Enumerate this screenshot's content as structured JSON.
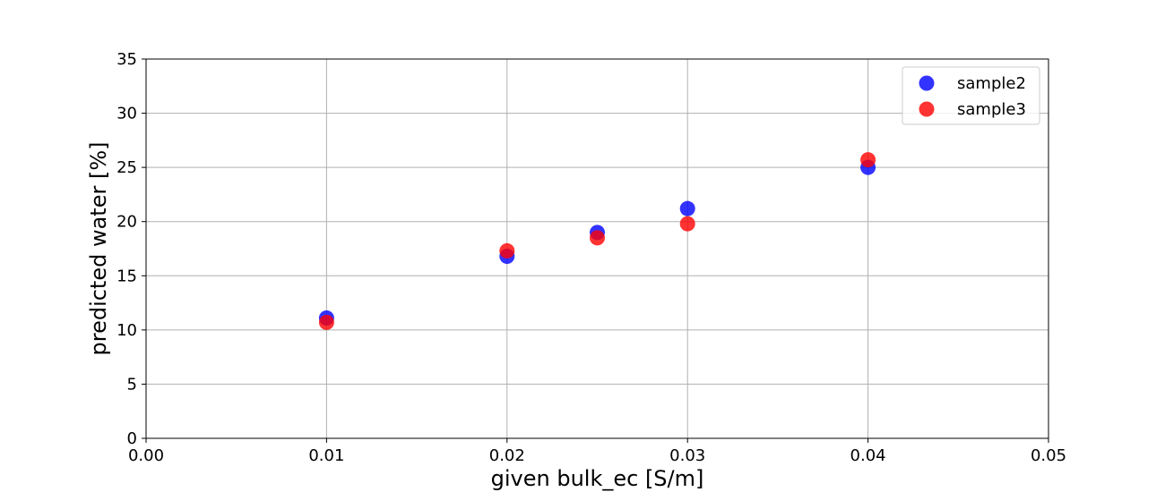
{
  "chart_data": {
    "type": "scatter",
    "title": "",
    "xlabel": "given bulk_ec [S/m]",
    "ylabel": "predicted water [%]",
    "xlim": [
      0.0,
      0.05
    ],
    "ylim": [
      0,
      35
    ],
    "x_ticks": [
      "0.00",
      "0.01",
      "0.02",
      "0.03",
      "0.04",
      "0.05"
    ],
    "y_ticks": [
      "0",
      "5",
      "10",
      "15",
      "20",
      "25",
      "30",
      "35"
    ],
    "grid": true,
    "legend_position": "top-right",
    "series": [
      {
        "name": "sample2",
        "color": "#0000ff",
        "points": [
          {
            "x": 0.01,
            "y": 11.1
          },
          {
            "x": 0.02,
            "y": 16.8
          },
          {
            "x": 0.025,
            "y": 19.0
          },
          {
            "x": 0.03,
            "y": 21.2
          },
          {
            "x": 0.04,
            "y": 25.0
          }
        ]
      },
      {
        "name": "sample3",
        "color": "#ff0000",
        "points": [
          {
            "x": 0.01,
            "y": 10.7
          },
          {
            "x": 0.02,
            "y": 17.3
          },
          {
            "x": 0.025,
            "y": 18.5
          },
          {
            "x": 0.03,
            "y": 19.8
          },
          {
            "x": 0.04,
            "y": 25.7
          }
        ]
      }
    ]
  }
}
